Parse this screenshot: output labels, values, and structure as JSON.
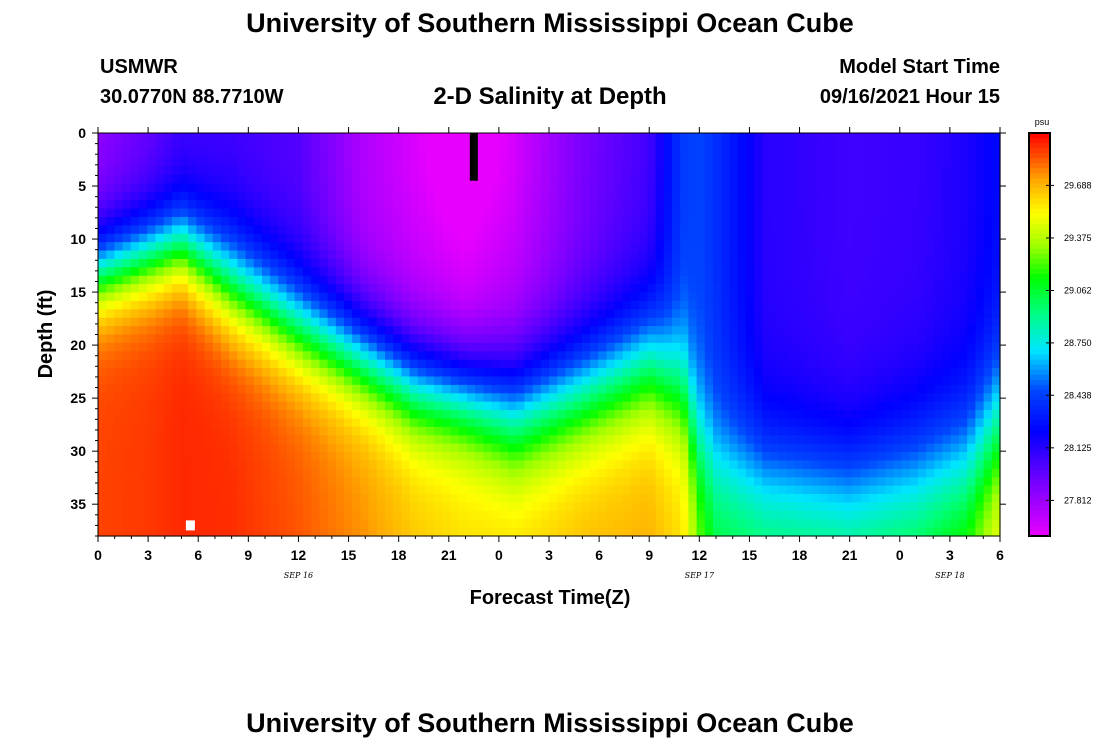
{
  "header": {
    "title": "University of Southern Mississippi Ocean Cube",
    "station": "USMWR",
    "coords": "30.0770N  88.7710W",
    "subtitle": "2-D Salinity at Depth",
    "model_start_label": "Model Start Time",
    "model_start_value": "09/16/2021 Hour 15"
  },
  "footer": {
    "title": "University of Southern Mississippi Ocean Cube"
  },
  "colors": {
    "axis": "#000000",
    "background": "#ffffff"
  },
  "chart_data": {
    "type": "heatmap",
    "title": "2-D Salinity at Depth",
    "xlabel": "Forecast Time(Z)",
    "ylabel": "Depth (ft)",
    "x_tick_labels": [
      "0",
      "3",
      "6",
      "9",
      "12",
      "15",
      "18",
      "21",
      "0",
      "3",
      "6",
      "9",
      "12",
      "15",
      "18",
      "21",
      "0",
      "3",
      "6"
    ],
    "x_range_hours": [
      0,
      54
    ],
    "x_tick_step_hours": 3,
    "date_labels": [
      {
        "label": "SEP 16",
        "hour": 12
      },
      {
        "label": "SEP 17",
        "hour": 36
      },
      {
        "label": "SEP 18",
        "hour": 51
      }
    ],
    "y_tick_labels": [
      "0",
      "5",
      "10",
      "15",
      "20",
      "25",
      "30",
      "35"
    ],
    "y_range_ft": [
      0,
      38
    ],
    "y_tick_step_ft": 5,
    "colorbar": {
      "unit": "psu",
      "tick_labels": [
        "29.688",
        "29.375",
        "29.062",
        "28.750",
        "28.438",
        "28.125",
        "27.812"
      ],
      "range": [
        27.6,
        30.0
      ]
    },
    "salinity_profile": {
      "time_hours": [
        0,
        3,
        5,
        8,
        12,
        16,
        19,
        22,
        25,
        29,
        33,
        35,
        36,
        37,
        40,
        45,
        49,
        52,
        54
      ],
      "surface_salinity": [
        27.84,
        27.95,
        28.05,
        28.05,
        28.0,
        27.75,
        27.68,
        27.62,
        27.7,
        27.9,
        28.05,
        28.42,
        28.45,
        28.38,
        28.12,
        28.06,
        28.08,
        28.15,
        28.25
      ],
      "cline_depth_ft": [
        13,
        11.5,
        10.5,
        14,
        18,
        21,
        23.5,
        24.5,
        26,
        24,
        21.5,
        24,
        29,
        31,
        32,
        33,
        32,
        31,
        27
      ],
      "cline_width_ft": [
        2.5,
        2.5,
        2.5,
        3,
        3,
        3,
        3,
        3,
        3.5,
        3.5,
        3.5,
        3.5,
        3.5,
        3.5,
        3.5,
        3.5,
        4,
        4,
        4
      ],
      "bottom_salinity": [
        29.88,
        29.9,
        29.93,
        29.92,
        29.85,
        29.75,
        29.65,
        29.6,
        29.62,
        29.68,
        29.7,
        29.6,
        29.3,
        29.1,
        29.05,
        29.05,
        29.15,
        29.3,
        29.55
      ]
    },
    "markers": [
      {
        "type": "black-bar",
        "hour": 22.5,
        "depth_from_ft": 0,
        "depth_to_ft": 4.5
      },
      {
        "type": "white-square",
        "hour": 5.5,
        "depth_ft": 37
      }
    ]
  }
}
